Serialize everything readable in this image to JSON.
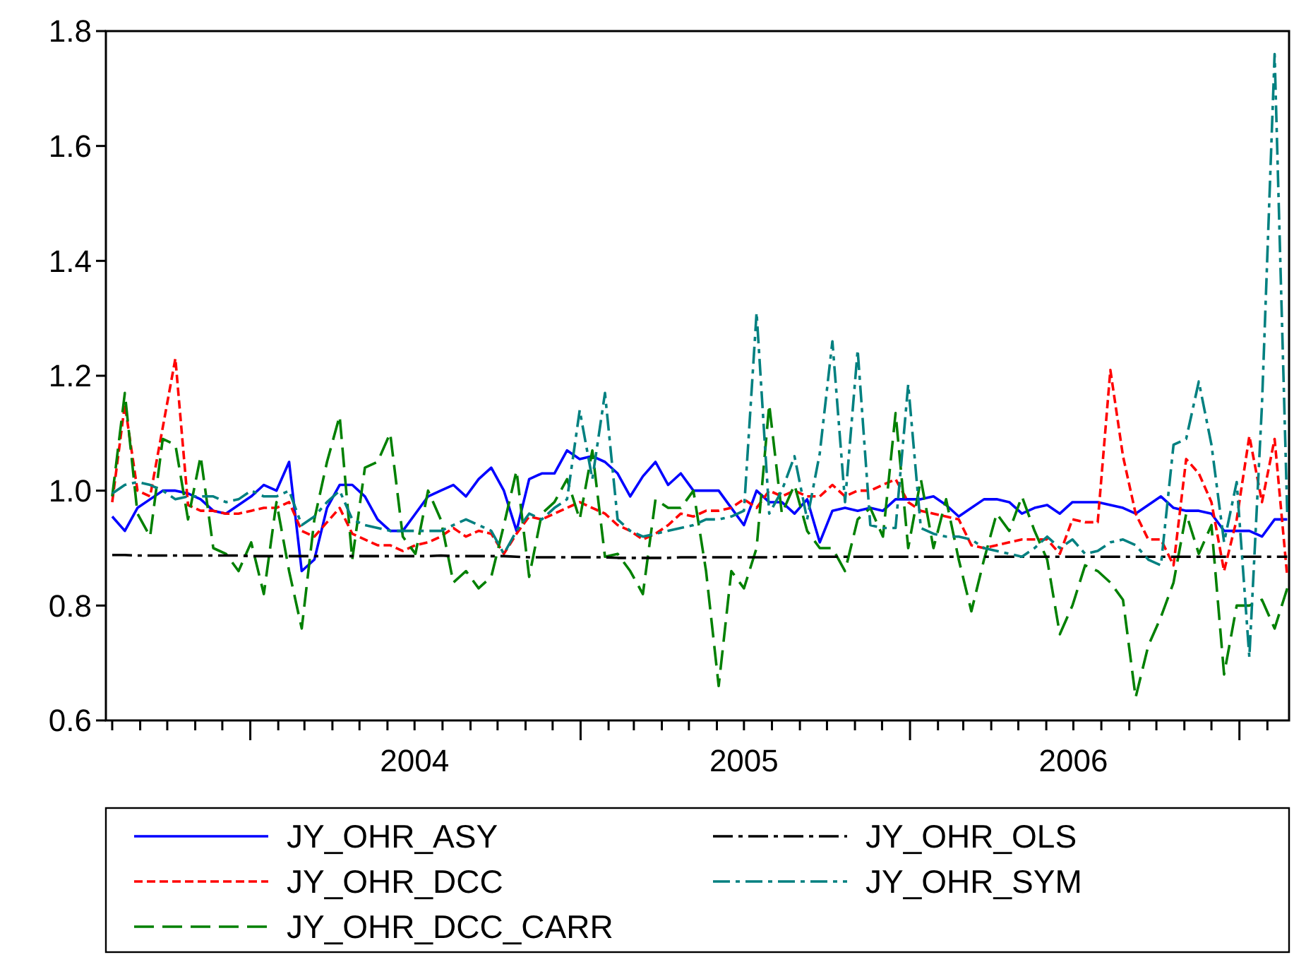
{
  "chart_data": {
    "type": "line",
    "x": [
      "2003-08-01",
      "2003-08-15",
      "2003-08-29",
      "2003-09-12",
      "2003-09-26",
      "2003-10-10",
      "2003-10-24",
      "2003-11-07",
      "2003-11-21",
      "2003-12-05",
      "2003-12-19",
      "2004-01-02",
      "2004-01-16",
      "2004-01-30",
      "2004-02-13",
      "2004-02-27",
      "2004-03-12",
      "2004-03-26",
      "2004-04-09",
      "2004-04-23",
      "2004-05-07",
      "2004-05-21",
      "2004-06-04",
      "2004-06-18",
      "2004-07-02",
      "2004-07-16",
      "2004-07-30",
      "2004-08-13",
      "2004-08-27",
      "2004-09-10",
      "2004-09-24",
      "2004-10-08",
      "2004-10-22",
      "2004-11-05",
      "2004-11-19",
      "2004-12-03",
      "2004-12-17",
      "2004-12-31",
      "2005-01-14",
      "2005-01-28",
      "2005-02-11",
      "2005-02-25",
      "2005-03-11",
      "2005-03-25",
      "2005-04-08",
      "2005-04-22",
      "2005-05-06",
      "2005-05-20",
      "2005-06-03",
      "2005-06-17",
      "2005-07-01",
      "2005-07-15",
      "2005-07-29",
      "2005-08-12",
      "2005-08-26",
      "2005-09-09",
      "2005-09-23",
      "2005-10-07",
      "2005-10-21",
      "2005-11-04",
      "2005-11-18",
      "2005-12-02",
      "2005-12-16",
      "2005-12-30",
      "2006-01-13",
      "2006-01-27",
      "2006-02-10",
      "2006-02-24",
      "2006-03-10",
      "2006-03-24",
      "2006-04-07",
      "2006-04-21",
      "2006-05-05",
      "2006-05-19",
      "2006-06-02",
      "2006-06-16",
      "2006-06-30",
      "2006-07-14",
      "2006-07-28",
      "2006-08-11",
      "2006-08-25",
      "2006-09-08",
      "2006-09-22",
      "2006-10-06",
      "2006-10-20",
      "2006-11-03",
      "2006-11-17",
      "2006-12-01",
      "2006-12-15",
      "2006-12-29",
      "2007-01-12",
      "2007-01-26",
      "2007-02-09",
      "2007-02-23"
    ],
    "series": [
      {
        "name": "JY_OHR_ASY",
        "color": "#0000ff",
        "line_style": "solid",
        "values": [
          0.955,
          0.93,
          0.97,
          0.985,
          1.0,
          1.0,
          0.995,
          0.985,
          0.965,
          0.96,
          0.975,
          0.99,
          1.01,
          1.0,
          1.05,
          0.86,
          0.88,
          0.97,
          1.01,
          1.01,
          0.99,
          0.95,
          0.93,
          0.93,
          0.96,
          0.99,
          1.0,
          1.01,
          0.99,
          1.02,
          1.04,
          1.0,
          0.93,
          1.02,
          1.03,
          1.03,
          1.07,
          1.055,
          1.06,
          1.05,
          1.03,
          0.99,
          1.025,
          1.05,
          1.01,
          1.03,
          1.0,
          1.0,
          1.0,
          0.97,
          0.94,
          1.0,
          0.98,
          0.98,
          0.96,
          0.985,
          0.91,
          0.965,
          0.97,
          0.965,
          0.97,
          0.965,
          0.985,
          0.985,
          0.985,
          0.99,
          0.975,
          0.955,
          0.97,
          0.985,
          0.985,
          0.98,
          0.96,
          0.97,
          0.975,
          0.96,
          0.98,
          0.98,
          0.98,
          0.975,
          0.97,
          0.96,
          0.975,
          0.99,
          0.97,
          0.965,
          0.965,
          0.96,
          0.93,
          0.93,
          0.93,
          0.92,
          0.95,
          0.95
        ]
      },
      {
        "name": "JY_OHR_DCC",
        "color": "#ff0000",
        "line_style": "dashed",
        "values": [
          0.98,
          1.15,
          1.0,
          0.99,
          1.11,
          1.23,
          0.975,
          0.965,
          0.965,
          0.96,
          0.96,
          0.965,
          0.97,
          0.97,
          0.98,
          0.93,
          0.92,
          0.945,
          0.97,
          0.925,
          0.915,
          0.905,
          0.905,
          0.895,
          0.905,
          0.91,
          0.92,
          0.935,
          0.92,
          0.93,
          0.925,
          0.89,
          0.925,
          0.955,
          0.95,
          0.96,
          0.97,
          0.98,
          0.97,
          0.96,
          0.94,
          0.93,
          0.915,
          0.925,
          0.94,
          0.96,
          0.955,
          0.965,
          0.965,
          0.97,
          0.985,
          0.97,
          1.0,
          0.99,
          1.0,
          0.99,
          0.99,
          1.01,
          0.99,
          1.0,
          1.0,
          1.01,
          1.02,
          0.98,
          0.965,
          0.96,
          0.955,
          0.95,
          0.905,
          0.9,
          0.905,
          0.91,
          0.915,
          0.915,
          0.915,
          0.89,
          0.95,
          0.945,
          0.945,
          1.21,
          1.06,
          0.96,
          0.915,
          0.915,
          0.87,
          1.055,
          1.03,
          0.98,
          0.86,
          0.95,
          1.095,
          0.98,
          1.09,
          0.85
        ]
      },
      {
        "name": "JY_OHR_DCC_CARR",
        "color": "#008000",
        "line_style": "dashed",
        "values": [
          0.99,
          1.17,
          0.96,
          0.92,
          1.09,
          1.08,
          0.95,
          1.06,
          0.9,
          0.89,
          0.86,
          0.91,
          0.82,
          0.98,
          0.86,
          0.76,
          0.95,
          1.05,
          1.13,
          0.88,
          1.04,
          1.05,
          1.1,
          0.92,
          0.89,
          1.0,
          0.95,
          0.84,
          0.86,
          0.83,
          0.85,
          0.94,
          1.035,
          0.85,
          0.96,
          0.98,
          1.02,
          0.95,
          1.07,
          0.885,
          0.89,
          0.86,
          0.82,
          0.985,
          0.97,
          0.97,
          1.0,
          0.86,
          0.66,
          0.86,
          0.83,
          0.9,
          1.15,
          0.96,
          1.01,
          0.93,
          0.9,
          0.9,
          0.86,
          0.95,
          0.97,
          0.92,
          1.135,
          0.9,
          1.02,
          0.9,
          0.985,
          0.88,
          0.79,
          0.88,
          0.96,
          0.93,
          0.99,
          0.93,
          0.88,
          0.75,
          0.8,
          0.87,
          0.86,
          0.84,
          0.81,
          0.64,
          0.73,
          0.78,
          0.84,
          0.96,
          0.89,
          0.94,
          0.68,
          0.8,
          0.8,
          0.81,
          0.76,
          0.83
        ]
      },
      {
        "name": "JY_OHR_OLS",
        "color": "#000000",
        "line_style": "dashed",
        "values": [
          0.888,
          0.888,
          0.887,
          0.887,
          0.887,
          0.887,
          0.887,
          0.887,
          0.887,
          0.887,
          0.887,
          0.886,
          0.886,
          0.886,
          0.886,
          0.886,
          0.886,
          0.886,
          0.886,
          0.886,
          0.886,
          0.886,
          0.886,
          0.886,
          0.886,
          0.886,
          0.887,
          0.886,
          0.886,
          0.886,
          0.886,
          0.886,
          0.885,
          0.884,
          0.884,
          0.884,
          0.884,
          0.884,
          0.884,
          0.884,
          0.883,
          0.883,
          0.883,
          0.883,
          0.883,
          0.884,
          0.884,
          0.884,
          0.884,
          0.884,
          0.884,
          0.884,
          0.884,
          0.885,
          0.885,
          0.885,
          0.885,
          0.885,
          0.885,
          0.885,
          0.885,
          0.885,
          0.885,
          0.885,
          0.885,
          0.885,
          0.885,
          0.885,
          0.885,
          0.885,
          0.885,
          0.885,
          0.885,
          0.885,
          0.885,
          0.885,
          0.885,
          0.885,
          0.885,
          0.885,
          0.885,
          0.885,
          0.885,
          0.885,
          0.885,
          0.885,
          0.885,
          0.885,
          0.885,
          0.885,
          0.885,
          0.885,
          0.885,
          0.885
        ]
      },
      {
        "name": "JY_OHR_SYM",
        "color": "#008080",
        "line_style": "dashed",
        "values": [
          0.995,
          1.01,
          1.015,
          1.01,
          1.0,
          0.985,
          0.99,
          0.99,
          0.99,
          0.98,
          0.985,
          1.0,
          0.99,
          0.99,
          1.0,
          0.94,
          0.955,
          0.98,
          1.0,
          0.95,
          0.94,
          0.935,
          0.93,
          0.93,
          0.93,
          0.93,
          0.93,
          0.94,
          0.95,
          0.94,
          0.93,
          0.89,
          0.93,
          0.96,
          0.95,
          0.97,
          0.985,
          1.14,
          1.02,
          1.17,
          0.95,
          0.93,
          0.92,
          0.925,
          0.93,
          0.935,
          0.94,
          0.95,
          0.95,
          0.955,
          0.965,
          1.31,
          0.96,
          1.0,
          1.06,
          0.95,
          1.065,
          1.26,
          0.98,
          1.245,
          0.94,
          0.935,
          0.935,
          1.185,
          0.935,
          0.925,
          0.92,
          0.92,
          0.915,
          0.9,
          0.895,
          0.89,
          0.885,
          0.9,
          0.92,
          0.9,
          0.915,
          0.89,
          0.895,
          0.91,
          0.915,
          0.905,
          0.88,
          0.87,
          1.08,
          1.09,
          1.19,
          1.08,
          0.91,
          1.015,
          0.71,
          1.15,
          1.76,
          0.96
        ]
      }
    ],
    "xlim": [
      "2003-07-25",
      "2007-02-25"
    ],
    "xticks": [
      {
        "value": "2003-08-01",
        "label": null
      },
      {
        "value": "2003-09-01",
        "label": null
      },
      {
        "value": "2003-10-01",
        "label": null
      },
      {
        "value": "2003-11-01",
        "label": null
      },
      {
        "value": "2003-12-01",
        "label": null
      },
      {
        "value": "2004-01-01",
        "label": null
      },
      {
        "value": "2004-02-01",
        "label": null
      },
      {
        "value": "2004-03-01",
        "label": null
      },
      {
        "value": "2004-04-01",
        "label": null
      },
      {
        "value": "2004-05-01",
        "label": null
      },
      {
        "value": "2004-06-01",
        "label": null
      },
      {
        "value": "2004-07-01",
        "label": "2004"
      },
      {
        "value": "2004-08-01",
        "label": null
      },
      {
        "value": "2004-09-01",
        "label": null
      },
      {
        "value": "2004-10-01",
        "label": null
      },
      {
        "value": "2004-11-01",
        "label": null
      },
      {
        "value": "2004-12-01",
        "label": null
      },
      {
        "value": "2005-01-01",
        "label": null
      },
      {
        "value": "2005-02-01",
        "label": null
      },
      {
        "value": "2005-03-01",
        "label": null
      },
      {
        "value": "2005-04-01",
        "label": null
      },
      {
        "value": "2005-05-01",
        "label": null
      },
      {
        "value": "2005-06-01",
        "label": null
      },
      {
        "value": "2005-07-01",
        "label": "2005"
      },
      {
        "value": "2005-08-01",
        "label": null
      },
      {
        "value": "2005-09-01",
        "label": null
      },
      {
        "value": "2005-10-01",
        "label": null
      },
      {
        "value": "2005-11-01",
        "label": null
      },
      {
        "value": "2005-12-01",
        "label": null
      },
      {
        "value": "2006-01-01",
        "label": null
      },
      {
        "value": "2006-02-01",
        "label": null
      },
      {
        "value": "2006-03-01",
        "label": null
      },
      {
        "value": "2006-04-01",
        "label": null
      },
      {
        "value": "2006-05-01",
        "label": null
      },
      {
        "value": "2006-06-01",
        "label": null
      },
      {
        "value": "2006-07-01",
        "label": "2006"
      },
      {
        "value": "2006-08-01",
        "label": null
      },
      {
        "value": "2006-09-01",
        "label": null
      },
      {
        "value": "2006-10-01",
        "label": null
      },
      {
        "value": "2006-11-01",
        "label": null
      },
      {
        "value": "2006-12-01",
        "label": null
      },
      {
        "value": "2007-01-01",
        "label": null
      },
      {
        "value": "2007-02-01",
        "label": null
      }
    ],
    "ylim": [
      0.6,
      1.8
    ],
    "yticks": [
      0.6,
      0.8,
      {
        "value": 1.0,
        "label": "1.0"
      },
      1.2,
      1.4,
      1.6,
      1.8
    ],
    "legend": "bottom"
  }
}
